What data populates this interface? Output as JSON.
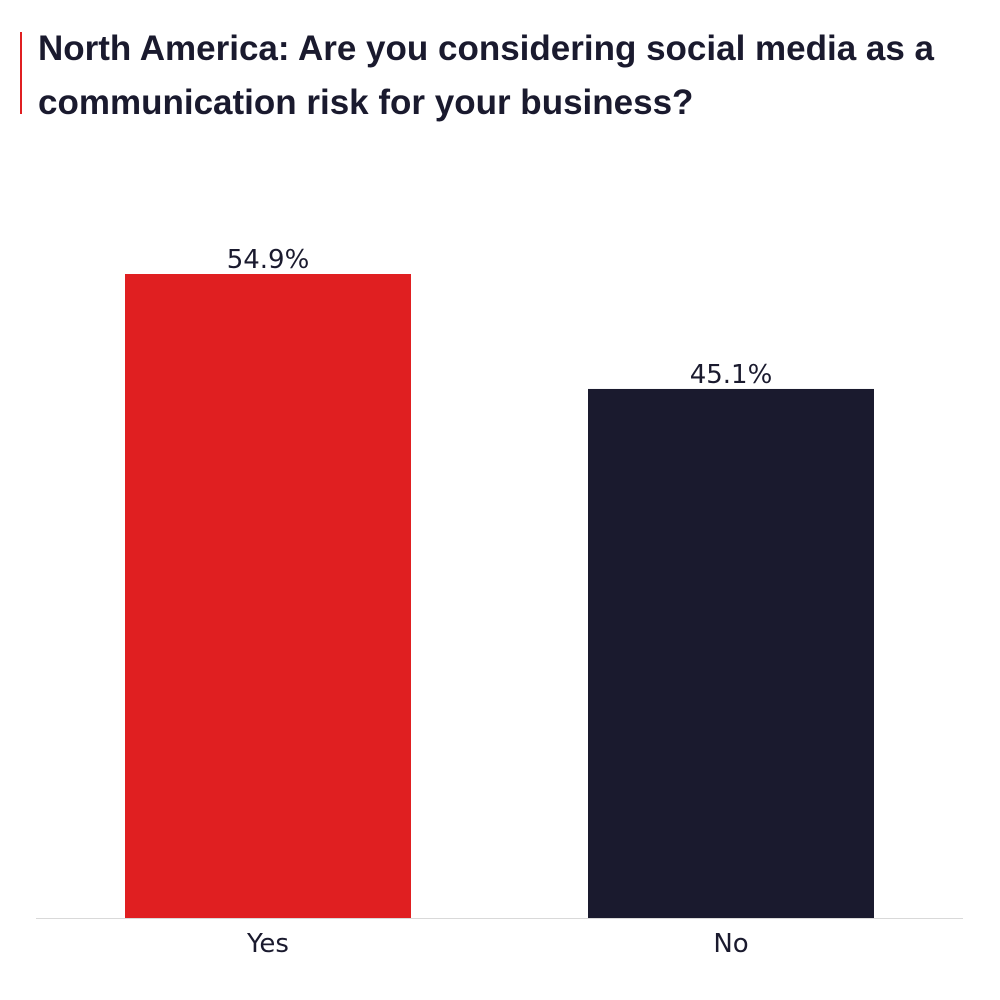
{
  "chart_data": {
    "type": "bar",
    "title": "North America: Are you considering social media as a communication risk for your business?",
    "categories": [
      "Yes",
      "No"
    ],
    "values": [
      54.9,
      45.1
    ],
    "value_labels": [
      "54.9%",
      "45.1%"
    ],
    "colors": [
      "#e01f21",
      "#1a1a2e"
    ],
    "ylim": [
      0,
      54.9
    ],
    "grid": false,
    "legend": "none"
  }
}
